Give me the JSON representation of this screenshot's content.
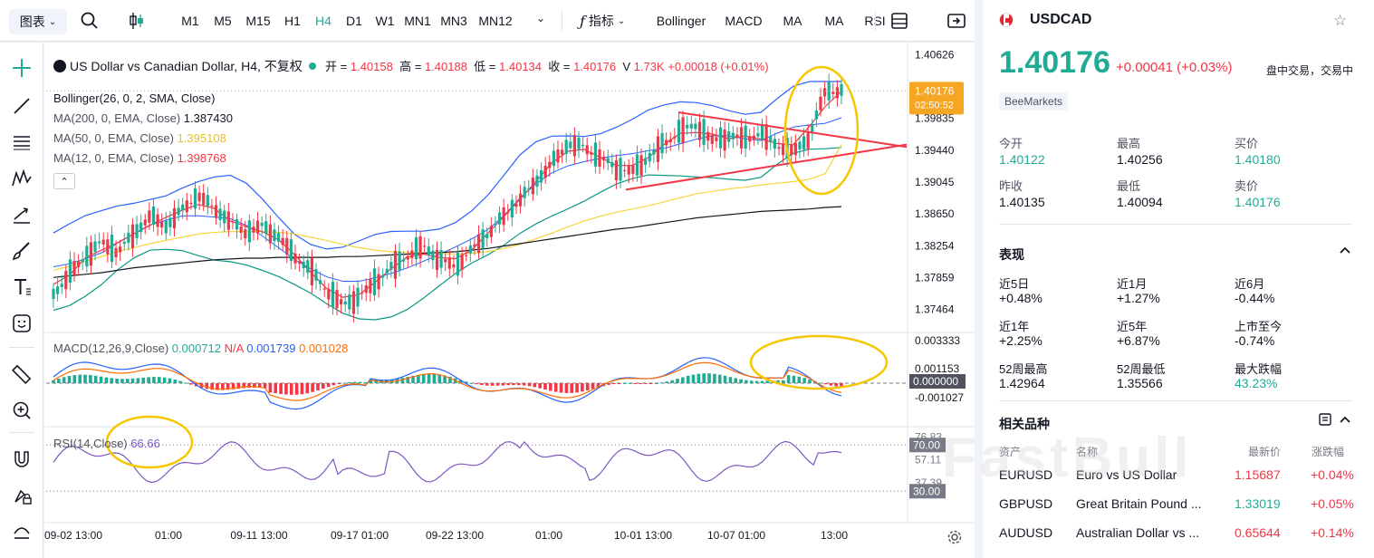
{
  "toolbar": {
    "chart_menu": "图表",
    "timeframes": [
      "M1",
      "M5",
      "M15",
      "H1",
      "H4",
      "D1",
      "W1",
      "MN1",
      "MN3",
      "MN12"
    ],
    "active_timeframe": "H4",
    "indicators_label": "指标",
    "indicator_shortcuts": [
      "Bollinger",
      "MACD",
      "MA",
      "MA",
      "RSI"
    ]
  },
  "legend": {
    "title": "US Dollar vs Canadian Dollar, H4, 不复权",
    "open_label": "开 =",
    "open": "1.40158",
    "high_label": "高 =",
    "high": "1.40188",
    "low_label": "低 =",
    "low": "1.40134",
    "close_label": "收 =",
    "close": "1.40176",
    "volume_label": "V",
    "volume": "1.73K",
    "change": "+0.00018 (+0.01%)",
    "bollinger": "Bollinger(26, 0, 2, SMA, Close)",
    "ma200_label": "MA(200, 0, EMA, Close)",
    "ma200": "1.387430",
    "ma50_label": "MA(50, 0, EMA, Close)",
    "ma50": "1.395108",
    "ma12_label": "MA(12, 0, EMA, Close)",
    "ma12": "1.398768",
    "macd_label": "MACD(12,26,9,Close)",
    "macd_a": "0.000712",
    "macd_b": "N/A",
    "macd_c": "0.001739",
    "macd_d": "0.001028",
    "rsi_label": "RSI(14,Close)",
    "rsi": "66.66"
  },
  "price_axis": {
    "ticks": [
      "1.40626",
      "1.39835",
      "1.39440",
      "1.39045",
      "1.38650",
      "1.38254",
      "1.37859",
      "1.37464"
    ],
    "last_price": "1.40176",
    "countdown": "02:50:52"
  },
  "macd_axis": {
    "ticks": [
      "0.003333",
      "0.001153",
      "0.000000",
      "-0.001027"
    ]
  },
  "rsi_axis": {
    "ticks": [
      "76.83",
      "70.00",
      "57.11",
      "37.39",
      "30.00"
    ]
  },
  "time_axis": {
    "ticks": [
      "09-02 13:00",
      "01:00",
      "09-11 13:00",
      "09-17 01:00",
      "09-22 13:00",
      "01:00",
      "10-01 13:00",
      "10-07 01:00",
      "13:00"
    ]
  },
  "chart_data": {
    "type": "candlestick",
    "symbol": "USDCAD",
    "timeframe": "H4",
    "ylim": [
      1.372,
      1.4072
    ],
    "ohlc_last": {
      "open": 1.40158,
      "high": 1.40188,
      "low": 1.40134,
      "close": 1.40176
    },
    "close_path": [
      1.3765,
      1.379,
      1.3812,
      1.383,
      1.3818,
      1.384,
      1.3862,
      1.385,
      1.387,
      1.3888,
      1.3872,
      1.3855,
      1.3842,
      1.385,
      1.3836,
      1.3812,
      1.3795,
      1.377,
      1.3752,
      1.3762,
      1.378,
      1.3798,
      1.3812,
      1.3825,
      1.3808,
      1.38,
      1.382,
      1.384,
      1.3862,
      1.3882,
      1.3905,
      1.3928,
      1.3952,
      1.3948,
      1.3935,
      1.3922,
      1.3918,
      1.3935,
      1.3952,
      1.3968,
      1.3975,
      1.3955,
      1.3962,
      1.3958,
      1.3965,
      1.395,
      1.3942,
      1.396,
      1.4018,
      1.4017
    ],
    "ma200_path": [
      1.3786,
      1.3788,
      1.379,
      1.3792,
      1.3795,
      1.3798,
      1.38,
      1.3802,
      1.3804,
      1.3806,
      1.3808,
      1.3809,
      1.381,
      1.381,
      1.3811,
      1.3811,
      1.3811,
      1.3811,
      1.3812,
      1.3812,
      1.3813,
      1.3814,
      1.3815,
      1.3816,
      1.3817,
      1.3818,
      1.382,
      1.3822,
      1.3825,
      1.3828,
      1.3831,
      1.3834,
      1.3837,
      1.384,
      1.3843,
      1.3846,
      1.3848,
      1.3851,
      1.3854,
      1.3857,
      1.386,
      1.3862,
      1.3864,
      1.3866,
      1.3868,
      1.3869,
      1.387,
      1.3871,
      1.3873,
      1.3874
    ],
    "ma50_path": [
      1.3795,
      1.38,
      1.3806,
      1.3812,
      1.3818,
      1.3823,
      1.3828,
      1.3832,
      1.3836,
      1.384,
      1.3842,
      1.3843,
      1.3843,
      1.3843,
      1.3842,
      1.384,
      1.3836,
      1.3832,
      1.3827,
      1.3823,
      1.382,
      1.3818,
      1.3817,
      1.3817,
      1.3816,
      1.3815,
      1.3816,
      1.3818,
      1.3822,
      1.3827,
      1.3834,
      1.3841,
      1.3849,
      1.3856,
      1.3862,
      1.3867,
      1.3871,
      1.3875,
      1.388,
      1.3885,
      1.389,
      1.3893,
      1.3896,
      1.3898,
      1.3901,
      1.3903,
      1.3905,
      1.3908,
      1.3915,
      1.3951
    ],
    "macd": {
      "macd_last": 0.001739,
      "signal_last": 0.001028,
      "histogram_last": 0.000712
    },
    "rsi_last": 66.66,
    "rsi_levels": [
      70,
      30
    ],
    "annotations": [
      "red trend lines (converging triangle)",
      "yellow circles highlighting breakout, MACD cross and RSI area"
    ]
  },
  "symbol_panel": {
    "symbol": "USDCAD",
    "price": "1.40176",
    "change": "+0.00041",
    "change_pct": "(+0.03%)",
    "status": "盘中交易，交易中",
    "broker": "BeeMarkets",
    "stats": [
      {
        "label": "今开",
        "value": "1.40122",
        "color": "green"
      },
      {
        "label": "最高",
        "value": "1.40256",
        "color": "normal"
      },
      {
        "label": "买价",
        "value": "1.40180",
        "color": "green"
      },
      {
        "label": "昨收",
        "value": "1.40135",
        "color": "normal"
      },
      {
        "label": "最低",
        "value": "1.40094",
        "color": "normal"
      },
      {
        "label": "卖价",
        "value": "1.40176",
        "color": "green"
      }
    ],
    "performance_title": "表现",
    "performance": [
      {
        "label": "近5日",
        "value": "+0.48%"
      },
      {
        "label": "近1月",
        "value": "+1.27%"
      },
      {
        "label": "近6月",
        "value": "-0.44%"
      },
      {
        "label": "近1年",
        "value": "+2.25%"
      },
      {
        "label": "近5年",
        "value": "+6.87%"
      },
      {
        "label": "上市至今",
        "value": "-0.74%"
      },
      {
        "label": "52周最高",
        "value": "1.42964"
      },
      {
        "label": "52周最低",
        "value": "1.35566"
      },
      {
        "label": "最大跌幅",
        "value": "43.23%",
        "color": "green"
      }
    ],
    "related_title": "相关品种",
    "related_headers": [
      "资产",
      "名称",
      "最新价",
      "涨跌幅"
    ],
    "related": [
      {
        "asset": "EURUSD",
        "name": "Euro vs US Dollar",
        "price": "1.15687",
        "price_color": "red",
        "change": "+0.04%"
      },
      {
        "asset": "GBPUSD",
        "name": "Great Britain Pound ...",
        "price": "1.33019",
        "price_color": "green",
        "change": "+0.05%"
      },
      {
        "asset": "AUDUSD",
        "name": "Australian Dollar vs ...",
        "price": "0.65644",
        "price_color": "red",
        "change": "+0.14%"
      }
    ],
    "watermark": "FastBull"
  },
  "colors": {
    "up": "#22ab94",
    "down": "#f23645",
    "ma200": "#131722",
    "ma50": "#f5d63d",
    "ma12": "#f23645",
    "bollinger": "#2962ff",
    "bollinger_lower": "#089981",
    "rsi": "#7e57c2",
    "macd": "#2962ff",
    "signal": "#ff6d00",
    "annotation_circle": "#f7c600",
    "trendline": "#f23645"
  }
}
